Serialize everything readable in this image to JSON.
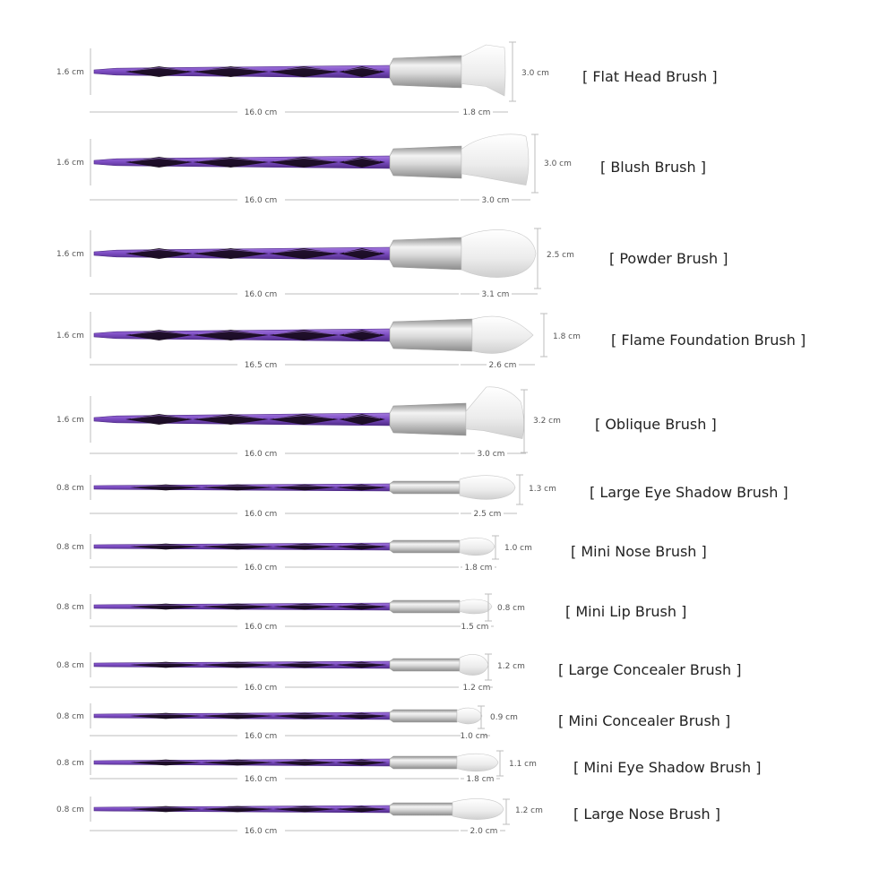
{
  "colors": {
    "handle_light": "#a57be0",
    "handle_mid": "#7e4ec4",
    "handle_dark": "#4e2a86",
    "facet": "#140818",
    "ferrule_light": "#f3f3f3",
    "ferrule_dark": "#8c8c8c",
    "bristle_light": "#ffffff",
    "bristle_dark": "#cfcfcf",
    "guide_line": "#bdbdbd",
    "label_text": "#222222",
    "measure_text": "#555555"
  },
  "brushes": [
    {
      "name": "[  Flat Head Brush   ]",
      "diameter": "1.6 cm",
      "handle_length": "16.0 cm",
      "head_length": "1.8 cm",
      "head_width": "3.0 cm",
      "head_shape": "flat"
    },
    {
      "name": "[  Blush Brush   ]",
      "diameter": "1.6 cm",
      "handle_length": "16.0 cm",
      "head_length": "3.0 cm",
      "head_width": "3.0 cm",
      "head_shape": "blush"
    },
    {
      "name": "[  Powder Brush   ]",
      "diameter": "1.6 cm",
      "handle_length": "16.0 cm",
      "head_length": "3.1 cm",
      "head_width": "2.5 cm",
      "head_shape": "round"
    },
    {
      "name": "[  Flame Foundation Brush   ]",
      "diameter": "1.6 cm",
      "handle_length": "16.5 cm",
      "head_length": "2.6 cm",
      "head_width": "1.8 cm",
      "head_shape": "flame"
    },
    {
      "name": "[  Oblique Brush   ]",
      "diameter": "1.6 cm",
      "handle_length": "16.0 cm",
      "head_length": "3.0 cm",
      "head_width": "3.2 cm",
      "head_shape": "oblique"
    },
    {
      "name": "[  Large Eye Shadow Brush   ]",
      "diameter": "0.8 cm",
      "handle_length": "16.0 cm",
      "head_length": "2.5 cm",
      "head_width": "1.3 cm",
      "head_shape": "round"
    },
    {
      "name": "[  Mini Nose Brush   ]",
      "diameter": "0.8 cm",
      "handle_length": "16.0 cm",
      "head_length": "1.8 cm",
      "head_width": "1.0 cm",
      "head_shape": "round"
    },
    {
      "name": "[  Mini Lip Brush   ]",
      "diameter": "0.8 cm",
      "handle_length": "16.0 cm",
      "head_length": "1.5 cm",
      "head_width": "0.8 cm",
      "head_shape": "round"
    },
    {
      "name": "[  Large Concealer Brush   ]",
      "diameter": "0.8 cm",
      "handle_length": "16.0 cm",
      "head_length": "1.2 cm",
      "head_width": "1.2 cm",
      "head_shape": "round"
    },
    {
      "name": "[  Mini Concealer Brush   ]",
      "diameter": "0.8 cm",
      "handle_length": "16.0 cm",
      "head_length": "1.0 cm",
      "head_width": "0.9 cm",
      "head_shape": "round"
    },
    {
      "name": "[ Mini Eye Shadow Brush   ]",
      "diameter": "0.8 cm",
      "handle_length": "16.0 cm",
      "head_length": "1.8 cm",
      "head_width": "1.1 cm",
      "head_shape": "round"
    },
    {
      "name": "[  Large Nose Brush   ]",
      "diameter": "0.8 cm",
      "handle_length": "16.0 cm",
      "head_length": "2.0 cm",
      "head_width": "1.2 cm",
      "head_shape": "round"
    }
  ]
}
